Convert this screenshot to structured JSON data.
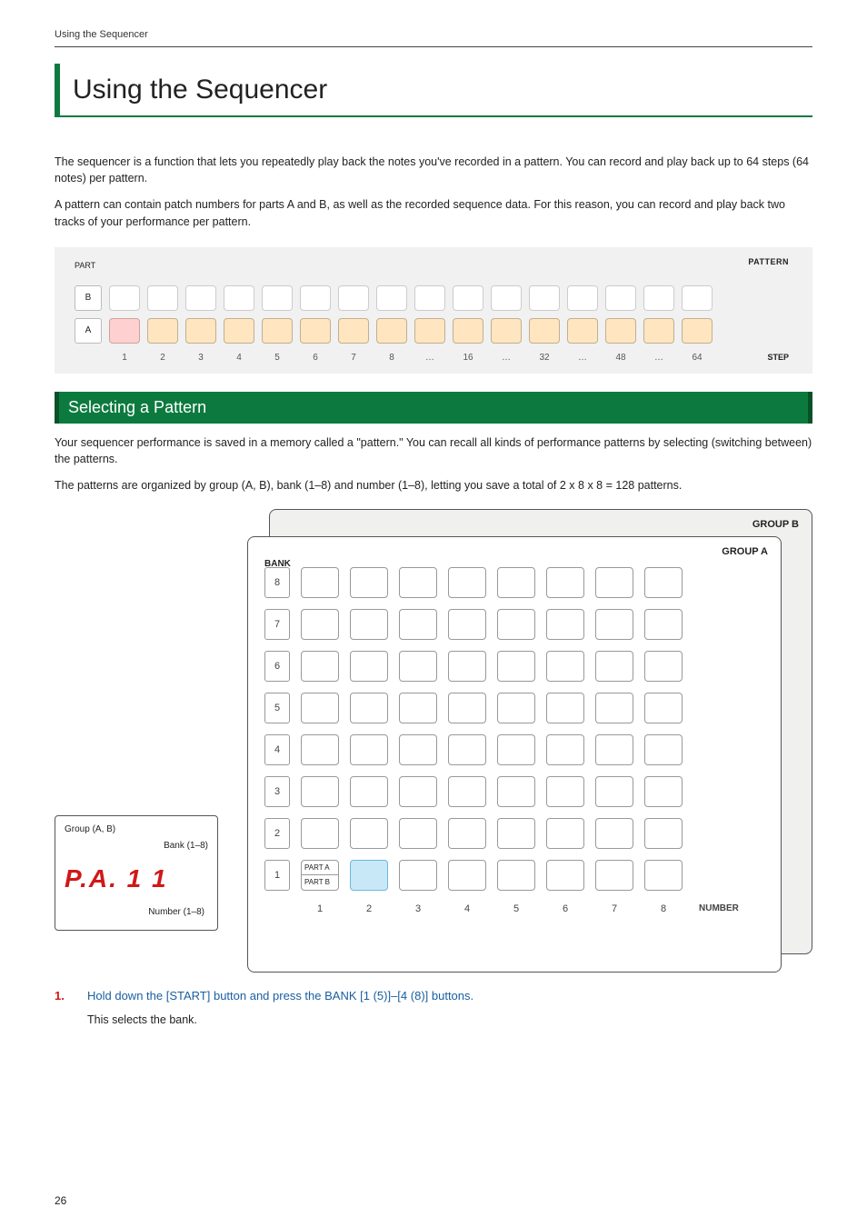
{
  "header": {
    "running": "Using the Sequencer"
  },
  "title": "Using the Sequencer",
  "intro": {
    "p1": "The sequencer is a function that lets you repeatedly play back the notes you've recorded in a pattern. You can record and play back up to 64 steps (64 notes) per pattern.",
    "p2": "A pattern can contain patch numbers for parts A and B, as well as the recorded sequence data. For this reason, you can record and play back two tracks of your performance per pattern."
  },
  "seq": {
    "pattern_label": "PATTERN",
    "part_label": "PART",
    "step_label": "STEP",
    "rows": [
      {
        "name": "B",
        "cells": [
          "white",
          "white",
          "white",
          "white",
          "white",
          "white",
          "white",
          "white",
          "white",
          "white",
          "white",
          "white",
          "white",
          "white",
          "white",
          "white"
        ]
      },
      {
        "name": "A",
        "cells": [
          "pink",
          "orange",
          "orange",
          "orange",
          "orange",
          "orange",
          "orange",
          "orange",
          "orange",
          "orange",
          "orange",
          "orange",
          "orange",
          "orange",
          "orange",
          "orange"
        ]
      }
    ],
    "steps": [
      "1",
      "2",
      "3",
      "4",
      "5",
      "6",
      "7",
      "8",
      "…",
      "16",
      "…",
      "32",
      "…",
      "48",
      "…",
      "64"
    ]
  },
  "section1": {
    "title": "Selecting a Pattern",
    "p1": "Your sequencer performance is saved in a memory called a \"pattern.\" You can recall all kinds of performance patterns by selecting (switching between) the patterns.",
    "p2": "The patterns are organized by group (A, B), bank (1–8) and number (1–8), letting you save a total of 2 x 8 x 8 = 128 patterns."
  },
  "callout": {
    "line1": "Group (A, B)",
    "line2": "Bank (1–8)",
    "digits": "P.A. 1 1",
    "line3": "Number (1–8)"
  },
  "grid": {
    "group_b": "GROUP B",
    "group_a": "GROUP A",
    "bank_label": "BANK",
    "number_label": "NUMBER",
    "banks": [
      "8",
      "7",
      "6",
      "5",
      "4",
      "3",
      "2",
      "1"
    ],
    "numbers": [
      "1",
      "2",
      "3",
      "4",
      "5",
      "6",
      "7",
      "8"
    ],
    "part_a": "PART A",
    "part_b": "PART B"
  },
  "steps_list": {
    "n1": "1.",
    "t1": "Hold down the [START] button and press the BANK [1 (5)]–[4 (8)] buttons.",
    "sub1": "This selects the bank."
  },
  "page_number": "26"
}
